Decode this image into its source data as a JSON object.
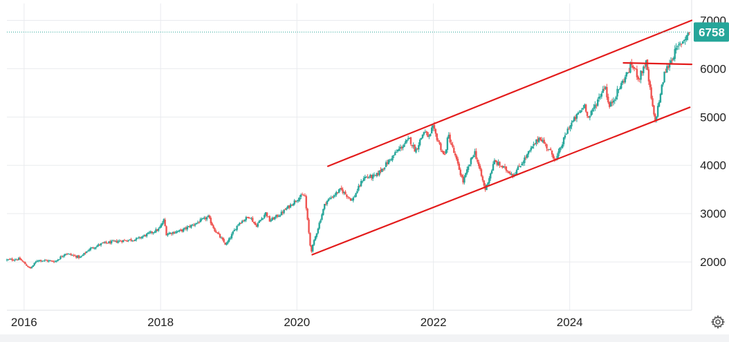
{
  "chart_data": {
    "type": "candlestick",
    "x_axis": {
      "type": "date",
      "range": [
        "2015-10-01",
        "2025-10-15"
      ],
      "tick_labels": [
        "2016",
        "2018",
        "2020",
        "2022",
        "2024"
      ],
      "tick_dates": [
        "2016-01-01",
        "2018-01-01",
        "2020-01-01",
        "2022-01-01",
        "2024-01-01"
      ]
    },
    "y_axis": {
      "range": [
        1000,
        7350
      ],
      "tick_labels": [
        "2000",
        "3000",
        "4000",
        "5000",
        "6000",
        "7000"
      ],
      "tick_values": [
        2000,
        3000,
        4000,
        5000,
        6000,
        7000
      ],
      "position": "right"
    },
    "grid": true,
    "colors": {
      "up": "#26a69a",
      "down": "#ef5350",
      "trendline": "#e31b1b",
      "last_price": "#26a69a"
    },
    "last_price": {
      "value": 6758,
      "label": "6758"
    },
    "price_path": [
      [
        "2015-10-01",
        2040
      ],
      [
        "2015-12-15",
        2060
      ],
      [
        "2016-02-10",
        1860
      ],
      [
        "2016-03-20",
        2040
      ],
      [
        "2016-06-24",
        2010
      ],
      [
        "2016-08-15",
        2180
      ],
      [
        "2016-11-04",
        2090
      ],
      [
        "2016-12-20",
        2260
      ],
      [
        "2017-03-01",
        2380
      ],
      [
        "2017-06-15",
        2440
      ],
      [
        "2017-09-01",
        2470
      ],
      [
        "2017-12-31",
        2680
      ],
      [
        "2018-01-26",
        2870
      ],
      [
        "2018-02-08",
        2580
      ],
      [
        "2018-05-01",
        2650
      ],
      [
        "2018-09-20",
        2930
      ],
      [
        "2018-10-25",
        2660
      ],
      [
        "2018-12-24",
        2350
      ],
      [
        "2019-03-01",
        2800
      ],
      [
        "2019-04-30",
        2950
      ],
      [
        "2019-06-03",
        2740
      ],
      [
        "2019-07-26",
        3020
      ],
      [
        "2019-08-15",
        2850
      ],
      [
        "2019-10-15",
        3000
      ],
      [
        "2020-01-17",
        3330
      ],
      [
        "2020-02-19",
        3390
      ],
      [
        "2020-03-23",
        2200
      ],
      [
        "2020-06-08",
        3230
      ],
      [
        "2020-08-30",
        3500
      ],
      [
        "2020-10-30",
        3270
      ],
      [
        "2020-12-31",
        3750
      ],
      [
        "2021-03-04",
        3770
      ],
      [
        "2021-06-30",
        4300
      ],
      [
        "2021-09-02",
        4540
      ],
      [
        "2021-10-04",
        4300
      ],
      [
        "2021-11-18",
        4700
      ],
      [
        "2021-12-20",
        4560
      ],
      [
        "2022-01-03",
        4800
      ],
      [
        "2022-03-08",
        4170
      ],
      [
        "2022-03-29",
        4630
      ],
      [
        "2022-06-16",
        3660
      ],
      [
        "2022-08-16",
        4300
      ],
      [
        "2022-10-12",
        3490
      ],
      [
        "2022-12-01",
        4080
      ],
      [
        "2023-03-13",
        3800
      ],
      [
        "2023-07-31",
        4590
      ],
      [
        "2023-10-27",
        4110
      ],
      [
        "2023-12-31",
        4770
      ],
      [
        "2024-03-28",
        5250
      ],
      [
        "2024-04-19",
        4970
      ],
      [
        "2024-07-16",
        5670
      ],
      [
        "2024-08-05",
        5190
      ],
      [
        "2024-12-06",
        6090
      ],
      [
        "2025-01-13",
        5800
      ],
      [
        "2025-02-19",
        6140
      ],
      [
        "2025-04-08",
        4880
      ],
      [
        "2025-05-30",
        5910
      ],
      [
        "2025-07-31",
        6390
      ],
      [
        "2025-10-08",
        6758
      ]
    ],
    "annotations": [
      {
        "type": "trendline",
        "from": [
          "2020-06-15",
          3980
        ],
        "to": [
          "2025-10-15",
          7000
        ]
      },
      {
        "type": "trendline",
        "from": [
          "2020-03-23",
          2150
        ],
        "to": [
          "2025-10-05",
          5200
        ]
      },
      {
        "type": "trendline",
        "from": [
          "2024-10-15",
          6120
        ],
        "to": [
          "2025-10-15",
          6090
        ]
      },
      {
        "type": "hline",
        "value": 6758,
        "style": "dotted"
      }
    ]
  },
  "icons": {
    "settings": "gear-icon"
  }
}
